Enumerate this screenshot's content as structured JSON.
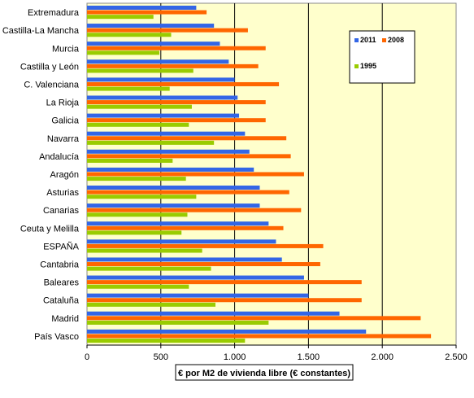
{
  "chart_data": {
    "type": "bar",
    "orientation": "horizontal",
    "categories": [
      "Extremadura",
      "Castilla-La Mancha",
      "Murcia",
      "Castilla y León",
      "C. Valenciana",
      "La Rioja",
      "Galicia",
      "Navarra",
      "Andalucía",
      "Aragón",
      "Asturias",
      "Canarias",
      "Ceuta y Melilla",
      "ESPAÑA",
      "Cantabria",
      "Baleares",
      "Cataluña",
      "Madrid",
      "País Vasco"
    ],
    "series": [
      {
        "name": "2011",
        "color": "#3366e6",
        "values": [
          740,
          860,
          900,
          960,
          1000,
          1020,
          1030,
          1070,
          1100,
          1130,
          1170,
          1170,
          1230,
          1280,
          1320,
          1470,
          1500,
          1710,
          1890
        ]
      },
      {
        "name": "2008",
        "color": "#ff6600",
        "values": [
          810,
          1090,
          1210,
          1160,
          1300,
          1210,
          1210,
          1350,
          1380,
          1470,
          1370,
          1450,
          1330,
          1600,
          1580,
          1860,
          1860,
          2260,
          2330
        ]
      },
      {
        "name": "1995",
        "color": "#99cc00",
        "values": [
          450,
          570,
          490,
          720,
          560,
          710,
          690,
          860,
          580,
          670,
          740,
          680,
          640,
          780,
          840,
          690,
          870,
          1230,
          1070
        ]
      }
    ],
    "xlim": [
      0,
      2500
    ],
    "x_ticks": [
      "0",
      "500",
      "1.000",
      "1.500",
      "2.000",
      "2.500"
    ],
    "xlabel": "€ por M2 de vivienda libre (€ constantes)",
    "ylabel": "",
    "grid": true,
    "legend": {
      "position": "top-right"
    },
    "colors": {
      "plot_background": "#ffffcc",
      "gridline": "#000000"
    }
  }
}
